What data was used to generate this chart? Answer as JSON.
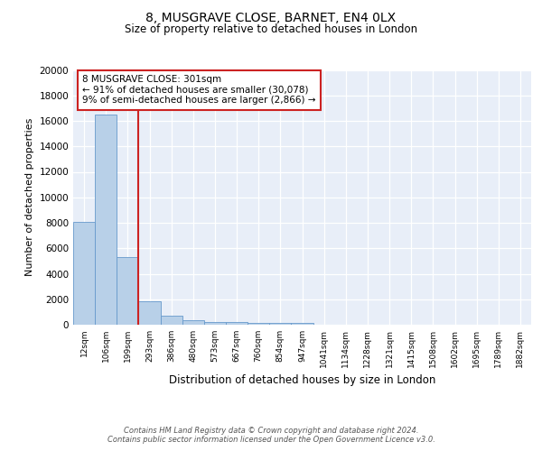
{
  "title1": "8, MUSGRAVE CLOSE, BARNET, EN4 0LX",
  "title2": "Size of property relative to detached houses in London",
  "xlabel": "Distribution of detached houses by size in London",
  "ylabel": "Number of detached properties",
  "bin_labels": [
    "12sqm",
    "106sqm",
    "199sqm",
    "293sqm",
    "386sqm",
    "480sqm",
    "573sqm",
    "667sqm",
    "760sqm",
    "854sqm",
    "947sqm",
    "1041sqm",
    "1134sqm",
    "1228sqm",
    "1321sqm",
    "1415sqm",
    "1508sqm",
    "1602sqm",
    "1695sqm",
    "1789sqm",
    "1882sqm"
  ],
  "bar_heights": [
    8100,
    16500,
    5300,
    1850,
    700,
    320,
    230,
    195,
    175,
    155,
    130,
    0,
    0,
    0,
    0,
    0,
    0,
    0,
    0,
    0,
    0
  ],
  "bar_color": "#b8d0e8",
  "bar_edge_color": "#6699cc",
  "vline_color": "#cc2222",
  "annotation_text": "8 MUSGRAVE CLOSE: 301sqm\n← 91% of detached houses are smaller (30,078)\n9% of semi-detached houses are larger (2,866) →",
  "annotation_box_color": "#ffffff",
  "annotation_box_edge": "#cc2222",
  "ylim": [
    0,
    20000
  ],
  "yticks": [
    0,
    2000,
    4000,
    6000,
    8000,
    10000,
    12000,
    14000,
    16000,
    18000,
    20000
  ],
  "footer": "Contains HM Land Registry data © Crown copyright and database right 2024.\nContains public sector information licensed under the Open Government Licence v3.0.",
  "fig_bg_color": "#ffffff",
  "plot_bg_color": "#e8eef8"
}
